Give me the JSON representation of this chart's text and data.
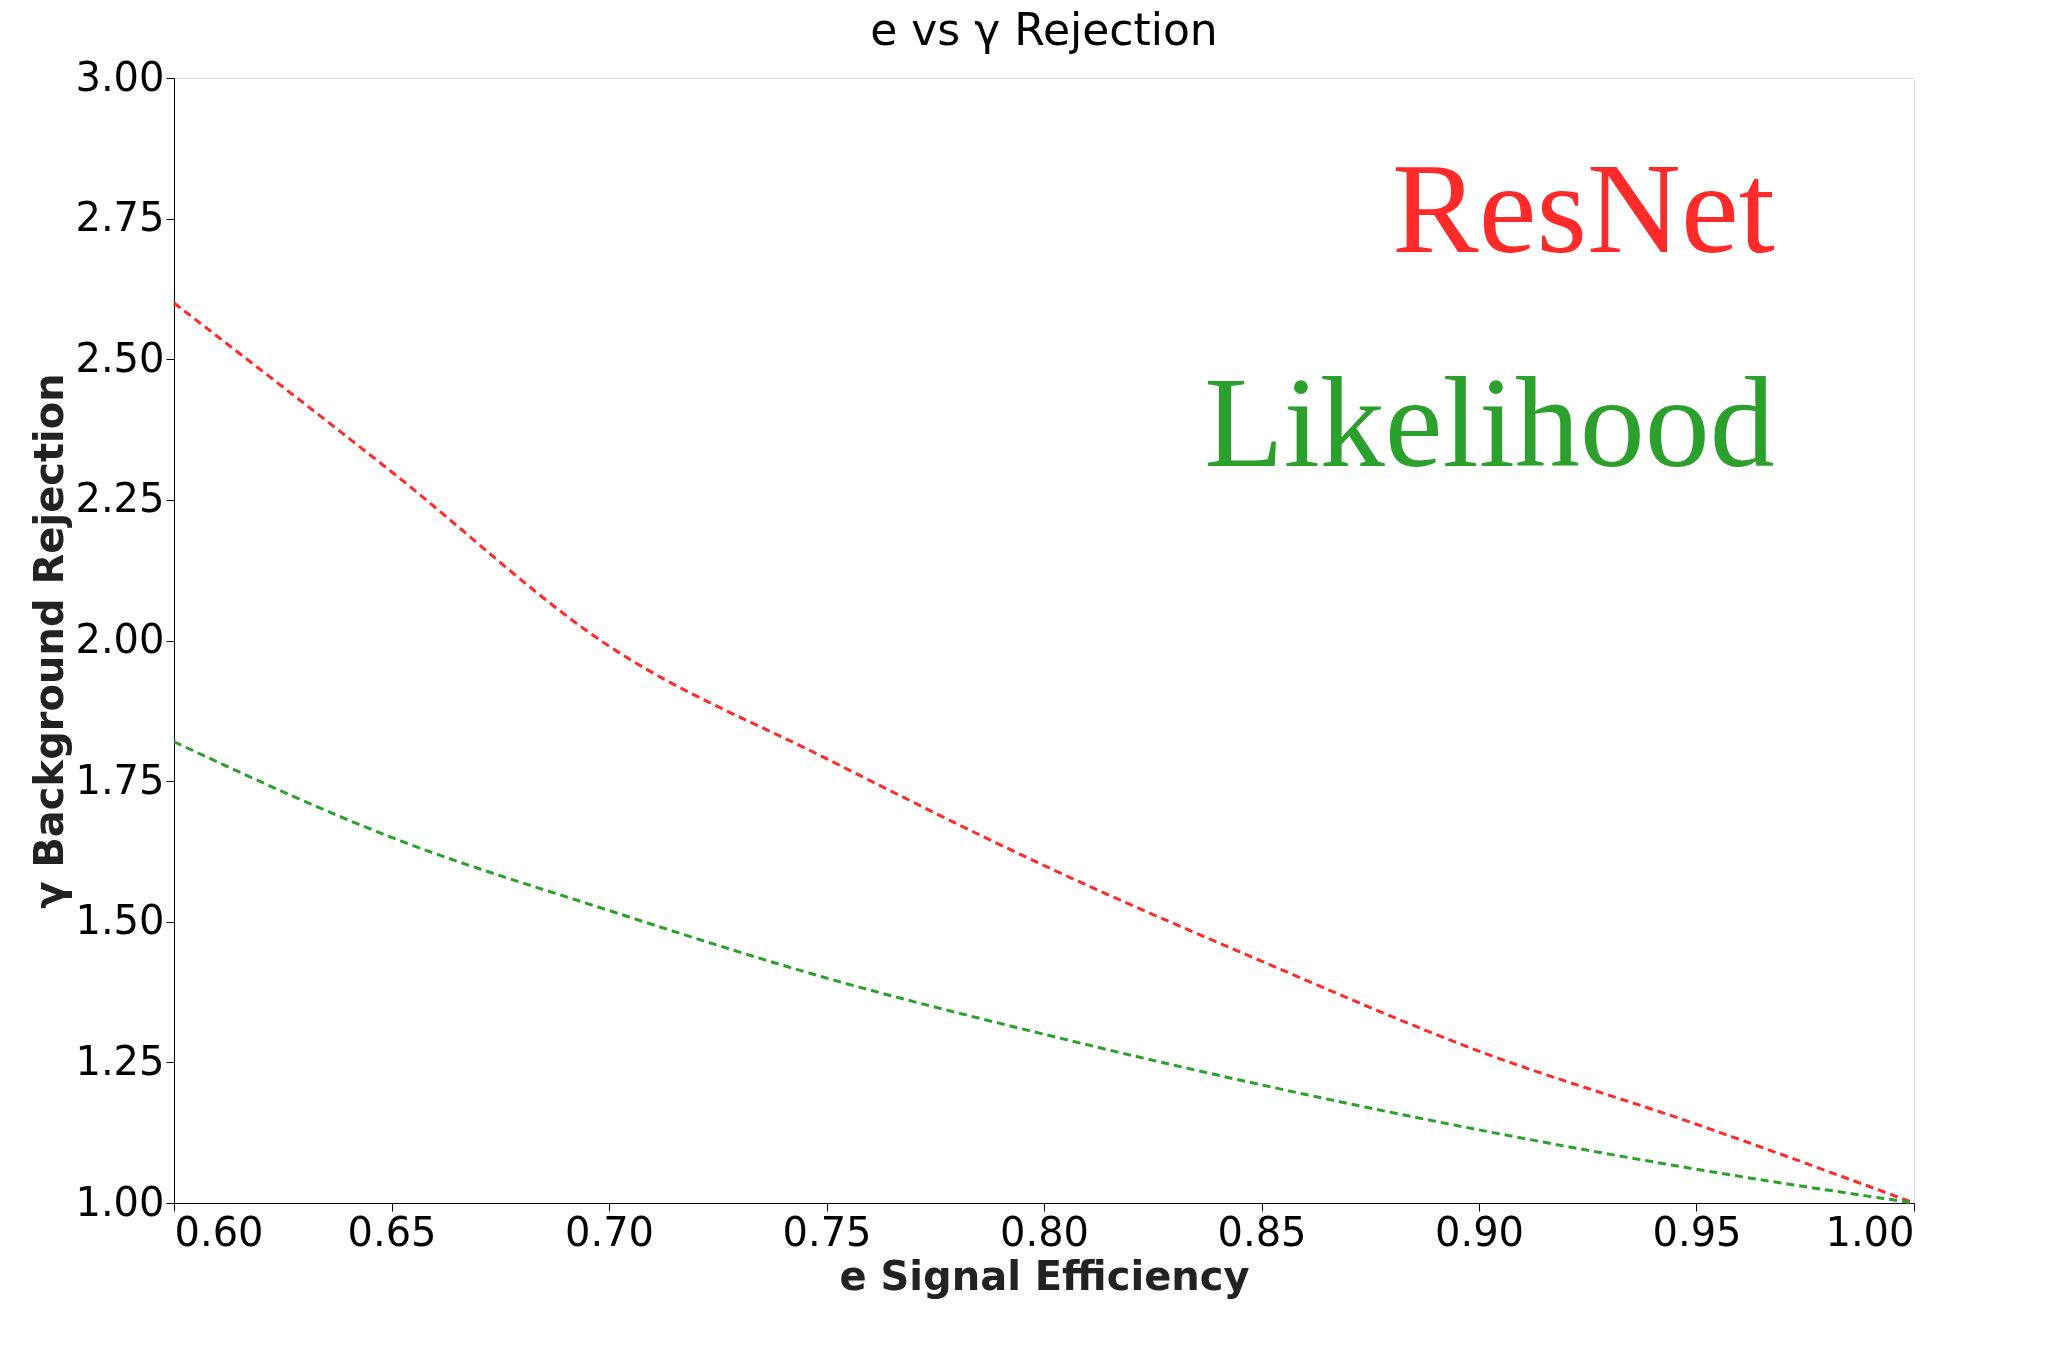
{
  "chart_data": {
    "type": "line",
    "title": "e vs γ Rejection",
    "xlabel": "e Signal Efficiency",
    "ylabel": "γ Background Rejection",
    "xlim": [
      0.6,
      1.0
    ],
    "xticks": [
      {
        "value": 0.6,
        "label": "0.60"
      },
      {
        "value": 0.65,
        "label": "0.65"
      },
      {
        "value": 0.7,
        "label": "0.70"
      },
      {
        "value": 0.75,
        "label": "0.75"
      },
      {
        "value": 0.8,
        "label": "0.80"
      },
      {
        "value": 0.85,
        "label": "0.85"
      },
      {
        "value": 0.9,
        "label": "0.90"
      },
      {
        "value": 0.95,
        "label": "0.95"
      },
      {
        "value": 1.0,
        "label": "1.00"
      }
    ],
    "ylim": [
      1.0,
      3.0
    ],
    "yticks": [
      {
        "value": 1.0,
        "label": "1.00"
      },
      {
        "value": 1.25,
        "label": "1.25"
      },
      {
        "value": 1.5,
        "label": "1.50"
      },
      {
        "value": 1.75,
        "label": "1.75"
      },
      {
        "value": 2.0,
        "label": "2.00"
      },
      {
        "value": 2.25,
        "label": "2.25"
      },
      {
        "value": 2.5,
        "label": "2.50"
      },
      {
        "value": 2.75,
        "label": "2.75"
      },
      {
        "value": 3.0,
        "label": "3.00"
      }
    ],
    "x": [
      0.6,
      0.65,
      0.7,
      0.75,
      0.8,
      0.85,
      0.9,
      0.95,
      1.0
    ],
    "series": [
      {
        "name": "ResNet",
        "color": "#ff2a2a",
        "values": [
          2.6,
          2.3,
          1.99,
          1.79,
          1.6,
          1.43,
          1.27,
          1.14,
          1.0
        ]
      },
      {
        "name": "Likelihood",
        "color": "#2ca02c",
        "values": [
          1.82,
          1.65,
          1.52,
          1.4,
          1.3,
          1.21,
          1.13,
          1.06,
          1.0
        ]
      }
    ],
    "line_style": "dashed",
    "marker": "none",
    "grid": false,
    "legend": "top right"
  }
}
